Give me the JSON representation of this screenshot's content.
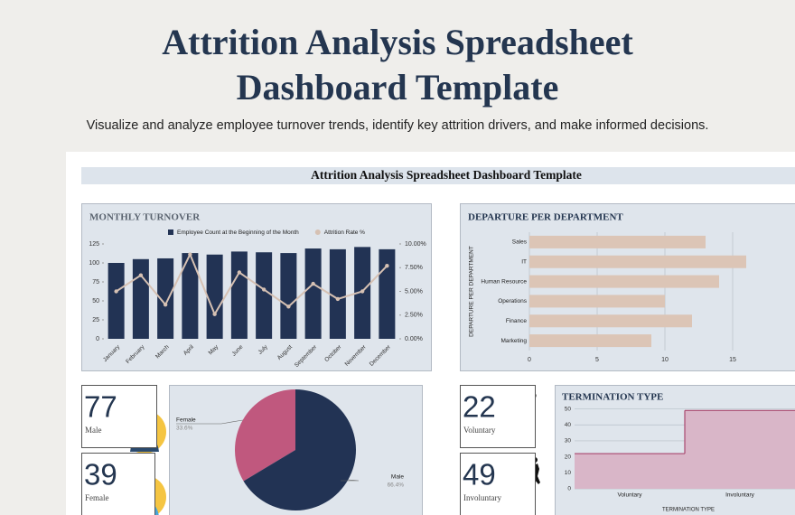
{
  "header": {
    "title": "Attrition Analysis Spreadsheet Dashboard Template",
    "subtitle": "Visualize and analyze employee turnover trends, identify key attrition drivers, and make informed decisions."
  },
  "sheet_title": "Attrition Analysis Spreadsheet Dashboard Template",
  "kpis": [
    {
      "value": 77,
      "label": "Male"
    },
    {
      "value": 39,
      "label": "Female"
    },
    {
      "value": 22,
      "label": "Voluntary"
    },
    {
      "value": 49,
      "label": "Involuntary"
    }
  ],
  "chart_data": [
    {
      "type": "combo",
      "title": "MONTHLY TURNOVER",
      "categories": [
        "January",
        "February",
        "March",
        "April",
        "May",
        "June",
        "July",
        "August",
        "September",
        "October",
        "November",
        "December"
      ],
      "series": [
        {
          "name": "Employee Count at the Beginning of the Month",
          "color": "#223354",
          "values": [
            100,
            105,
            106,
            113,
            111,
            115,
            114,
            113,
            119,
            118,
            121,
            118
          ]
        },
        {
          "name": "Attrition Rate %",
          "color": "#d6c1b3",
          "axis": "y2",
          "values": [
            5.0,
            6.7,
            3.6,
            8.9,
            2.6,
            7.0,
            5.2,
            3.4,
            5.8,
            4.2,
            5.0,
            7.7
          ]
        }
      ],
      "ylim": [
        0,
        125
      ],
      "yticks": [
        0,
        25,
        50,
        75,
        100,
        125
      ],
      "y2lim": [
        0,
        10
      ],
      "y2ticks": [
        {
          "value": 0,
          "label": "0.00%"
        },
        {
          "value": 2.5,
          "label": "2.50%"
        },
        {
          "value": 5,
          "label": "5.00%"
        },
        {
          "value": 7.5,
          "label": "7.50%"
        },
        {
          "value": 10,
          "label": "10.00%"
        }
      ]
    },
    {
      "type": "barh",
      "title": "DEPARTURE PER DEPARTMENT",
      "y_label": "DEPARTURE PER DEPARTMENT",
      "categories": [
        "Sales",
        "IT",
        "Human Resource",
        "Operations",
        "Finance",
        "Marketing"
      ],
      "values": [
        13,
        16,
        14,
        10,
        12,
        9
      ],
      "color": "#dcc5b6",
      "xlim": [
        0,
        19
      ],
      "xticks": [
        0,
        5,
        10,
        15
      ],
      "grid": true
    },
    {
      "type": "pie",
      "categories": [
        "Female",
        "Male"
      ],
      "values": [
        33.6,
        66.4
      ],
      "value_labels": [
        "33.6%",
        "66.4%"
      ],
      "colors": [
        "#c0587e",
        "#223354"
      ]
    },
    {
      "type": "step",
      "title": "TERMINATION TYPE",
      "x_label": "TERMINATION TYPE",
      "categories": [
        "Voluntary",
        "Involuntary"
      ],
      "values": [
        22,
        49
      ],
      "color": "#d9b6c8",
      "line_color": "#a9486f",
      "ylim": [
        0,
        52
      ],
      "yticks": [
        0,
        10,
        20,
        30,
        40,
        50
      ],
      "grid": true
    }
  ]
}
